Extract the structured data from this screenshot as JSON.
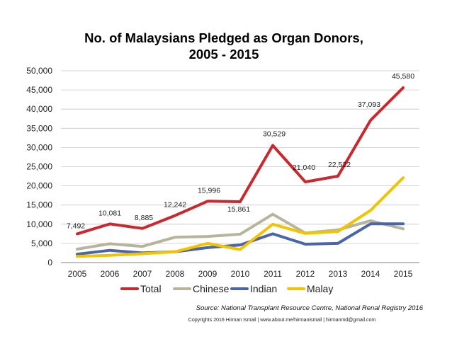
{
  "chart_data": {
    "type": "line",
    "title_lines": [
      "No. of Malaysians Pledged as Organ Donors,",
      "2005 - 2015"
    ],
    "categories": [
      "2005",
      "2006",
      "2007",
      "2008",
      "2009",
      "2010",
      "2011",
      "2012",
      "2013",
      "2014",
      "2015"
    ],
    "ylim": [
      0,
      50000
    ],
    "yticks": [
      0,
      5000,
      10000,
      15000,
      20000,
      25000,
      30000,
      35000,
      40000,
      45000,
      50000
    ],
    "ytick_labels": [
      "0",
      "5,000",
      "10,000",
      "15,000",
      "20,000",
      "25,000",
      "30,000",
      "35,000",
      "40,000",
      "45,000",
      "50,000"
    ],
    "grid": true,
    "legend_position": "bottom",
    "series": [
      {
        "name": "Total",
        "color": "#C8282E",
        "values": [
          7492,
          10081,
          8885,
          12242,
          15996,
          15861,
          30529,
          21040,
          22522,
          37093,
          45580
        ],
        "data_labels": [
          "7,492",
          "10,081",
          "8,885",
          "12,242",
          "15,996",
          "15,861",
          "30,529",
          "21,040",
          "22,522",
          "37,093",
          "45,580"
        ]
      },
      {
        "name": "Chinese",
        "color": "#B6B59C",
        "values": [
          3500,
          4900,
          4200,
          6600,
          6800,
          7400,
          12600,
          7700,
          8500,
          10900,
          8800
        ]
      },
      {
        "name": "Indian",
        "color": "#4A66A8",
        "values": [
          2200,
          3200,
          2500,
          2800,
          3900,
          4600,
          7500,
          4800,
          5000,
          10100,
          10100
        ]
      },
      {
        "name": "Malay",
        "color": "#F2C400",
        "values": [
          1600,
          1900,
          2300,
          2800,
          5000,
          3400,
          10000,
          7600,
          8100,
          13600,
          22100
        ]
      }
    ]
  },
  "source": "Source: National Transplant Resource Centre, National Renal Registry 2016",
  "copyright": "Copyrights 2016 Hirman Ismail | www.about.me/hirmanismail | hirmanmd@gmail.com"
}
